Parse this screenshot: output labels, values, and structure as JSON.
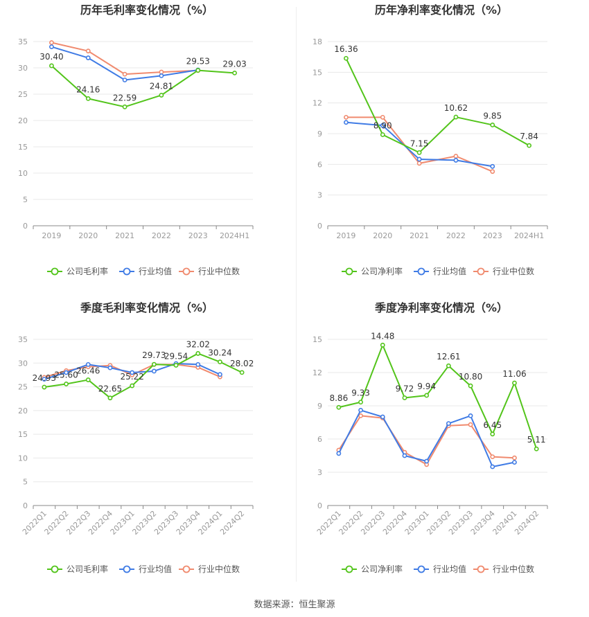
{
  "source_label": "数据来源：恒生聚源",
  "colors": {
    "company": "#52c41a",
    "avg": "#3f7be5",
    "median": "#f08a6e",
    "grid": "#e8e8e8",
    "axis": "#999999"
  },
  "chart_data": [
    {
      "id": "annual-gross",
      "type": "line",
      "title": "历年毛利率变化情况（%）",
      "categories": [
        "2019",
        "2020",
        "2021",
        "2022",
        "2023",
        "2024H1"
      ],
      "ylim": [
        0,
        35
      ],
      "yticks": [
        0,
        5,
        10,
        15,
        20,
        25,
        30,
        35
      ],
      "rotate_x": false,
      "series": [
        {
          "name": "公司毛利率",
          "role": "company",
          "values": [
            30.4,
            24.16,
            22.59,
            24.81,
            29.53,
            29.03
          ],
          "labels": [
            "30.40",
            "24.16",
            "22.59",
            "24.81",
            "29.53",
            "29.03"
          ]
        },
        {
          "name": "行业均值",
          "role": "avg",
          "values": [
            34.0,
            31.9,
            27.7,
            28.5,
            29.6,
            null
          ]
        },
        {
          "name": "行业中位数",
          "role": "median",
          "values": [
            34.8,
            33.2,
            28.8,
            29.2,
            29.5,
            null
          ]
        }
      ]
    },
    {
      "id": "annual-net",
      "type": "line",
      "title": "历年净利率变化情况（%）",
      "categories": [
        "2019",
        "2020",
        "2021",
        "2022",
        "2023",
        "2024H1"
      ],
      "ylim": [
        0,
        18
      ],
      "yticks": [
        0,
        3,
        6,
        9,
        12,
        15,
        18
      ],
      "rotate_x": false,
      "series": [
        {
          "name": "公司净利率",
          "role": "company",
          "values": [
            16.36,
            8.9,
            7.15,
            10.62,
            9.85,
            7.84
          ],
          "labels": [
            "16.36",
            "8.90",
            "7.15",
            "10.62",
            "9.85",
            "7.84"
          ]
        },
        {
          "name": "行业均值",
          "role": "avg",
          "values": [
            10.1,
            9.8,
            6.5,
            6.4,
            5.8,
            null
          ]
        },
        {
          "name": "行业中位数",
          "role": "median",
          "values": [
            10.6,
            10.6,
            6.1,
            6.8,
            5.3,
            null
          ]
        }
      ]
    },
    {
      "id": "quarterly-gross",
      "type": "line",
      "title": "季度毛利率变化情况（%）",
      "categories": [
        "2022Q1",
        "2022Q2",
        "2022Q3",
        "2022Q4",
        "2023Q1",
        "2023Q2",
        "2023Q3",
        "2023Q4",
        "2024Q1",
        "2024Q2"
      ],
      "ylim": [
        0,
        35
      ],
      "yticks": [
        0,
        5,
        10,
        15,
        20,
        25,
        30,
        35
      ],
      "rotate_x": true,
      "series": [
        {
          "name": "公司毛利率",
          "role": "company",
          "values": [
            24.93,
            25.6,
            26.46,
            22.65,
            25.22,
            29.73,
            29.54,
            32.02,
            30.24,
            28.02
          ],
          "labels": [
            "24.93",
            "25.60",
            "26.46",
            "22.65",
            "25.22",
            "29.73",
            "29.54",
            "32.02",
            "30.24",
            "28.02"
          ]
        },
        {
          "name": "行业均值",
          "role": "avg",
          "values": [
            26.6,
            28.0,
            29.7,
            29.0,
            28.0,
            28.3,
            29.9,
            29.7,
            27.6,
            null
          ]
        },
        {
          "name": "行业中位数",
          "role": "median",
          "values": [
            27.0,
            28.4,
            29.2,
            29.5,
            27.5,
            29.7,
            29.7,
            29.1,
            27.1,
            null
          ]
        }
      ]
    },
    {
      "id": "quarterly-net",
      "type": "line",
      "title": "季度净利率变化情况（%）",
      "categories": [
        "2022Q1",
        "2022Q2",
        "2022Q3",
        "2022Q4",
        "2023Q1",
        "2023Q2",
        "2023Q3",
        "2023Q4",
        "2024Q1",
        "2024Q2"
      ],
      "ylim": [
        0,
        15
      ],
      "yticks": [
        0,
        3,
        6,
        9,
        12,
        15
      ],
      "rotate_x": true,
      "series": [
        {
          "name": "公司净利率",
          "role": "company",
          "values": [
            8.86,
            9.33,
            14.48,
            9.72,
            9.94,
            12.61,
            10.8,
            6.45,
            11.06,
            5.11
          ],
          "labels": [
            "8.86",
            "9.33",
            "14.48",
            "9.72",
            "9.94",
            "12.61",
            "10.80",
            "6.45",
            "11.06",
            "5.11"
          ]
        },
        {
          "name": "行业均值",
          "role": "avg",
          "values": [
            4.7,
            8.6,
            8.0,
            4.5,
            4.0,
            7.4,
            8.1,
            3.5,
            3.9,
            null
          ]
        },
        {
          "name": "行业中位数",
          "role": "median",
          "values": [
            5.0,
            8.1,
            7.9,
            4.8,
            3.7,
            7.2,
            7.3,
            4.4,
            4.3,
            null
          ]
        }
      ]
    }
  ]
}
